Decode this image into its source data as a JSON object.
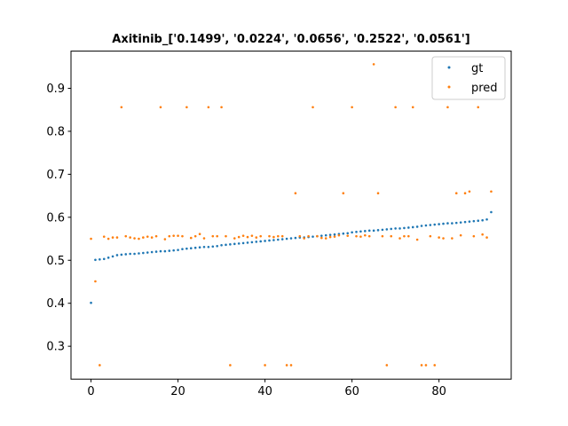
{
  "chart_data": {
    "type": "scatter",
    "title": "Axitinib_['0.1499', '0.0224', '0.0656', '0.2522', '0.0561']",
    "xlabel": "",
    "ylabel": "",
    "xlim": [
      -4.6,
      96.6
    ],
    "ylim": [
      0.2235,
      0.9865
    ],
    "xticks": [
      0,
      20,
      40,
      60,
      80
    ],
    "yticks": [
      0.3,
      0.4,
      0.5,
      0.6,
      0.7,
      0.8,
      0.9
    ],
    "grid": false,
    "legend_position": "top-right",
    "series": [
      {
        "name": "gt",
        "color": "#1f77b4",
        "x": [
          0,
          1,
          2,
          3,
          4,
          5,
          6,
          7,
          8,
          9,
          10,
          11,
          12,
          13,
          14,
          15,
          16,
          17,
          18,
          19,
          20,
          21,
          22,
          23,
          24,
          25,
          26,
          27,
          28,
          29,
          30,
          31,
          32,
          33,
          34,
          35,
          36,
          37,
          38,
          39,
          40,
          41,
          42,
          43,
          44,
          45,
          46,
          47,
          48,
          49,
          50,
          51,
          52,
          53,
          54,
          55,
          56,
          57,
          58,
          59,
          60,
          61,
          62,
          63,
          64,
          65,
          66,
          67,
          68,
          69,
          70,
          71,
          72,
          73,
          74,
          75,
          76,
          77,
          78,
          79,
          80,
          81,
          82,
          83,
          84,
          85,
          86,
          87,
          88,
          89,
          90,
          91,
          92
        ],
        "y": [
          0.401,
          0.501,
          0.502,
          0.503,
          0.506,
          0.509,
          0.512,
          0.513,
          0.514,
          0.515,
          0.515,
          0.516,
          0.517,
          0.518,
          0.519,
          0.52,
          0.521,
          0.521,
          0.522,
          0.523,
          0.524,
          0.526,
          0.527,
          0.528,
          0.529,
          0.53,
          0.531,
          0.531,
          0.532,
          0.533,
          0.535,
          0.536,
          0.537,
          0.538,
          0.539,
          0.54,
          0.541,
          0.542,
          0.543,
          0.544,
          0.545,
          0.546,
          0.547,
          0.548,
          0.549,
          0.55,
          0.551,
          0.552,
          0.553,
          0.553,
          0.554,
          0.555,
          0.556,
          0.557,
          0.558,
          0.559,
          0.56,
          0.561,
          0.562,
          0.563,
          0.565,
          0.566,
          0.567,
          0.568,
          0.569,
          0.569,
          0.57,
          0.571,
          0.572,
          0.573,
          0.574,
          0.574,
          0.575,
          0.576,
          0.577,
          0.578,
          0.58,
          0.581,
          0.582,
          0.583,
          0.584,
          0.585,
          0.586,
          0.586,
          0.587,
          0.588,
          0.589,
          0.59,
          0.591,
          0.592,
          0.593,
          0.595,
          0.612
        ]
      },
      {
        "name": "pred",
        "color": "#ff7f0e",
        "x": [
          0,
          1,
          2,
          3,
          4,
          5,
          6,
          7,
          8,
          9,
          10,
          11,
          12,
          13,
          14,
          15,
          16,
          17,
          18,
          19,
          20,
          21,
          22,
          23,
          24,
          25,
          26,
          27,
          28,
          29,
          30,
          31,
          32,
          33,
          34,
          35,
          36,
          37,
          38,
          39,
          40,
          41,
          42,
          43,
          44,
          45,
          46,
          47,
          48,
          49,
          50,
          51,
          52,
          53,
          54,
          55,
          56,
          57,
          58,
          59,
          60,
          61,
          62,
          63,
          64,
          65,
          66,
          67,
          68,
          69,
          70,
          71,
          72,
          73,
          74,
          75,
          76,
          77,
          78,
          79,
          80,
          81,
          82,
          83,
          84,
          85,
          86,
          87,
          88,
          89,
          90,
          91,
          92
        ],
        "y": [
          0.55,
          0.451,
          0.256,
          0.555,
          0.55,
          0.553,
          0.553,
          0.856,
          0.556,
          0.553,
          0.551,
          0.55,
          0.553,
          0.555,
          0.553,
          0.556,
          0.856,
          0.549,
          0.556,
          0.557,
          0.557,
          0.556,
          0.856,
          0.552,
          0.556,
          0.561,
          0.551,
          0.856,
          0.556,
          0.556,
          0.856,
          0.556,
          0.256,
          0.551,
          0.554,
          0.557,
          0.554,
          0.557,
          0.553,
          0.556,
          0.256,
          0.556,
          0.554,
          0.556,
          0.556,
          0.256,
          0.256,
          0.656,
          0.556,
          0.551,
          0.556,
          0.856,
          0.556,
          0.552,
          0.551,
          0.554,
          0.555,
          0.558,
          0.656,
          0.557,
          0.856,
          0.556,
          0.555,
          0.558,
          0.556,
          0.956,
          0.656,
          0.556,
          0.256,
          0.556,
          0.856,
          0.551,
          0.556,
          0.556,
          0.856,
          0.548,
          0.256,
          0.256,
          0.556,
          0.256,
          0.553,
          0.551,
          0.856,
          0.551,
          0.656,
          0.558,
          0.656,
          0.66,
          0.556,
          0.856,
          0.56,
          0.553,
          0.66
        ]
      }
    ]
  }
}
